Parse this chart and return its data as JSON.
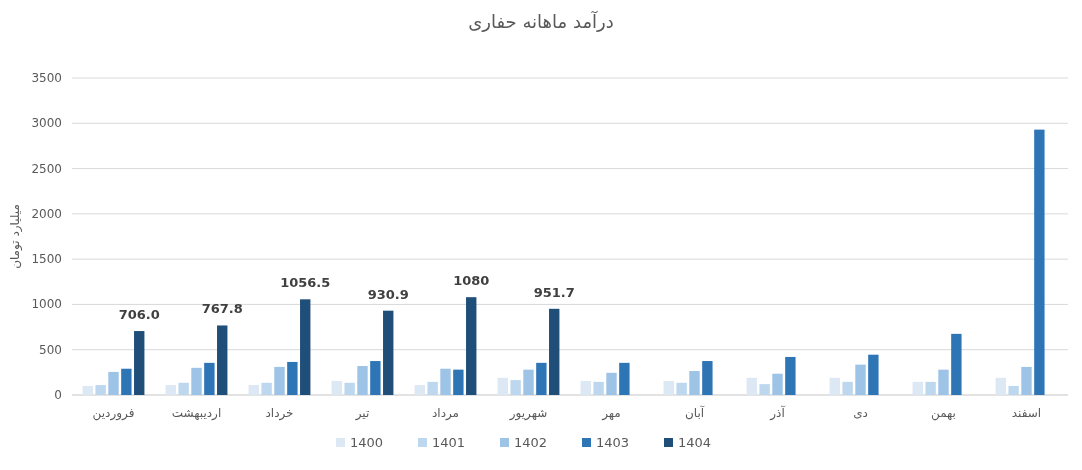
{
  "chart_data": {
    "type": "bar",
    "title": "درآمد ماهانه حفاری",
    "ylabel": "میلیارد تومان",
    "categories": [
      "فروردین",
      "اردیبهشت",
      "خرداد",
      "تیر",
      "مرداد",
      "شهریور",
      "مهر",
      "آبان",
      "آذر",
      "دی",
      "بهمن",
      "اسفند"
    ],
    "series": [
      {
        "name": "1400",
        "color": "#dde8f5",
        "values": [
          100,
          110,
          110,
          155,
          110,
          190,
          155,
          155,
          190,
          190,
          145,
          190
        ]
      },
      {
        "name": "1401",
        "color": "#bdd7ee",
        "values": [
          110,
          135,
          135,
          135,
          145,
          165,
          145,
          135,
          120,
          145,
          145,
          100
        ]
      },
      {
        "name": "1402",
        "color": "#9dc3e6",
        "values": [
          255,
          300,
          310,
          320,
          290,
          280,
          245,
          265,
          235,
          335,
          280,
          310
        ]
      },
      {
        "name": "1403",
        "color": "#2e75b6",
        "values": [
          290,
          355,
          365,
          375,
          280,
          355,
          355,
          375,
          420,
          445,
          675,
          2930
        ]
      },
      {
        "name": "1404",
        "color": "#1f4e79",
        "values": [
          706.0,
          767.8,
          1056.5,
          930.9,
          1080,
          951.7,
          null,
          null,
          null,
          null,
          null,
          null
        ],
        "value_labels": [
          "706.0",
          "767.8",
          "1056.5",
          "930.9",
          "1080",
          "951.7",
          null,
          null,
          null,
          null,
          null,
          null
        ]
      }
    ],
    "ylim": [
      0,
      3500
    ],
    "yticks": [
      0,
      500,
      1000,
      1500,
      2000,
      2500,
      3000,
      3500
    ],
    "grid": "y",
    "legend": "bottom"
  }
}
